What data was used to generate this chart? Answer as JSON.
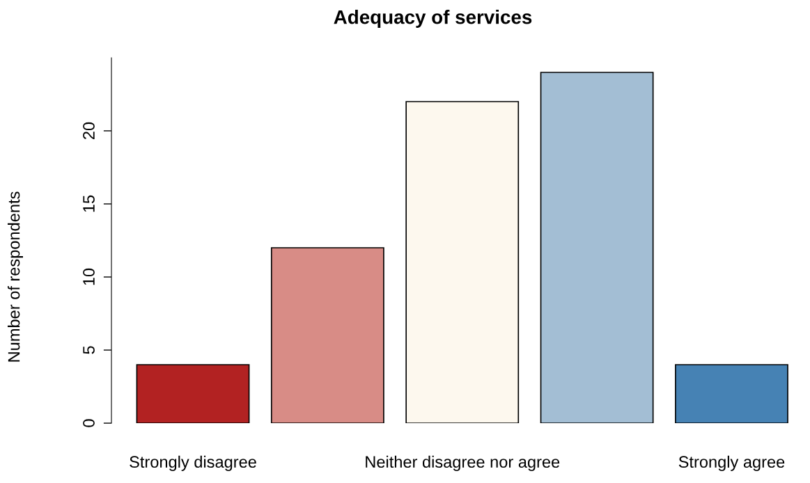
{
  "chart_data": {
    "type": "bar",
    "title": "Adequacy of services",
    "ylabel": "Number of respondents",
    "categories": [
      "Strongly disagree",
      null,
      "Neither disagree nor agree",
      null,
      "Strongly agree"
    ],
    "values": [
      4,
      12,
      22,
      24,
      4
    ],
    "colors": [
      "#b22222",
      "#d88c86",
      "#fdf8ee",
      "#a3bed4",
      "#4682b4"
    ],
    "ylim": [
      0,
      25
    ],
    "yticks": [
      0,
      5,
      10,
      15,
      20
    ],
    "grid": false
  }
}
